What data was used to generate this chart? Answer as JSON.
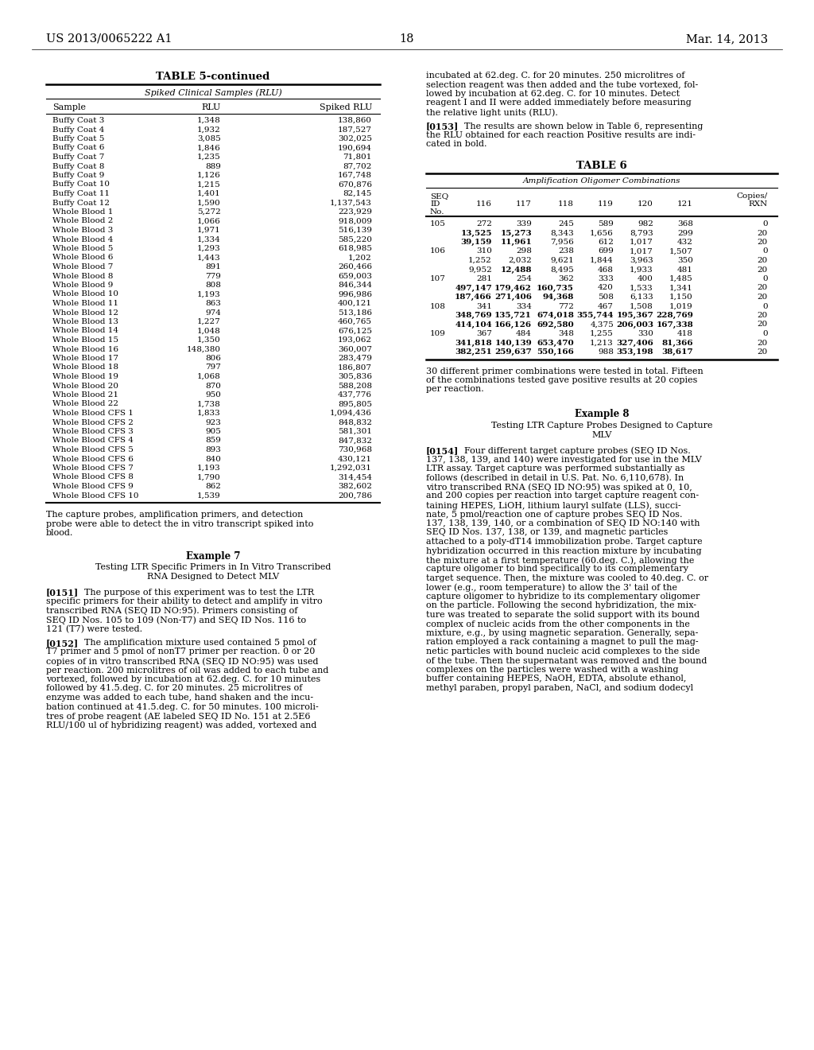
{
  "page_number": "18",
  "patent_number": "US 2013/0065222 A1",
  "patent_date": "Mar. 14, 2013",
  "bg_color": "#ffffff",
  "table5_title": "TABLE 5-continued",
  "table5_subtitle": "Spiked Clinical Samples (RLU)",
  "table5_data": [
    [
      "Buffy Coat 3",
      "1,348",
      "138,860"
    ],
    [
      "Buffy Coat 4",
      "1,932",
      "187,527"
    ],
    [
      "Buffy Coat 5",
      "3,085",
      "302,025"
    ],
    [
      "Buffy Coat 6",
      "1,846",
      "190,694"
    ],
    [
      "Buffy Coat 7",
      "1,235",
      "71,801"
    ],
    [
      "Buffy Coat 8",
      "889",
      "87,702"
    ],
    [
      "Buffy Coat 9",
      "1,126",
      "167,748"
    ],
    [
      "Buffy Coat 10",
      "1,215",
      "670,876"
    ],
    [
      "Buffy Coat 11",
      "1,401",
      "82,145"
    ],
    [
      "Buffy Coat 12",
      "1,590",
      "1,137,543"
    ],
    [
      "Whole Blood 1",
      "5,272",
      "223,929"
    ],
    [
      "Whole Blood 2",
      "1,066",
      "918,009"
    ],
    [
      "Whole Blood 3",
      "1,971",
      "516,139"
    ],
    [
      "Whole Blood 4",
      "1,334",
      "585,220"
    ],
    [
      "Whole Blood 5",
      "1,293",
      "618,985"
    ],
    [
      "Whole Blood 6",
      "1,443",
      "1,202"
    ],
    [
      "Whole Blood 7",
      "891",
      "260,466"
    ],
    [
      "Whole Blood 8",
      "779",
      "659,003"
    ],
    [
      "Whole Blood 9",
      "808",
      "846,344"
    ],
    [
      "Whole Blood 10",
      "1,193",
      "996,986"
    ],
    [
      "Whole Blood 11",
      "863",
      "400,121"
    ],
    [
      "Whole Blood 12",
      "974",
      "513,186"
    ],
    [
      "Whole Blood 13",
      "1,227",
      "460,765"
    ],
    [
      "Whole Blood 14",
      "1,048",
      "676,125"
    ],
    [
      "Whole Blood 15",
      "1,350",
      "193,062"
    ],
    [
      "Whole Blood 16",
      "148,380",
      "360,007"
    ],
    [
      "Whole Blood 17",
      "806",
      "283,479"
    ],
    [
      "Whole Blood 18",
      "797",
      "186,807"
    ],
    [
      "Whole Blood 19",
      "1,068",
      "305,836"
    ],
    [
      "Whole Blood 20",
      "870",
      "588,208"
    ],
    [
      "Whole Blood 21",
      "950",
      "437,776"
    ],
    [
      "Whole Blood 22",
      "1,738",
      "895,805"
    ],
    [
      "Whole Blood CFS 1",
      "1,833",
      "1,094,436"
    ],
    [
      "Whole Blood CFS 2",
      "923",
      "848,832"
    ],
    [
      "Whole Blood CFS 3",
      "905",
      "581,301"
    ],
    [
      "Whole Blood CFS 4",
      "859",
      "847,832"
    ],
    [
      "Whole Blood CFS 5",
      "893",
      "730,968"
    ],
    [
      "Whole Blood CFS 6",
      "840",
      "430,121"
    ],
    [
      "Whole Blood CFS 7",
      "1,193",
      "1,292,031"
    ],
    [
      "Whole Blood CFS 8",
      "1,790",
      "314,454"
    ],
    [
      "Whole Blood CFS 9",
      "862",
      "382,602"
    ],
    [
      "Whole Blood CFS 10",
      "1,539",
      "200,786"
    ]
  ],
  "table5_caption_lines": [
    "The capture probes, amplification primers, and detection",
    "probe were able to detect the in vitro transcript spiked into",
    "blood."
  ],
  "example7_header": "Example 7",
  "example7_title_lines": [
    "Testing LTR Specific Primers in In Vitro Transcribed",
    "RNA Designed to Detect MLV"
  ],
  "para_0151_lines": [
    "[0151]    The purpose of this experiment was to test the LTR",
    "specific primers for their ability to detect and amplify in vitro",
    "transcribed RNA (SEQ ID NO:95). Primers consisting of",
    "SEQ ID Nos. 105 to 109 (Non-T7) and SEQ ID Nos. 116 to",
    "121 (T7) were tested."
  ],
  "para_0152_lines": [
    "[0152]    The amplification mixture used contained 5 pmol of",
    "T7 primer and 5 pmol of nonT7 primer per reaction. 0 or 20",
    "copies of in vitro transcribed RNA (SEQ ID NO:95) was used",
    "per reaction. 200 microlitres of oil was added to each tube and",
    "vortexed, followed by incubation at 62.deg. C. for 10 minutes",
    "followed by 41.5.deg. C. for 20 minutes. 25 microlitres of",
    "enzyme was added to each tube, hand shaken and the incu-",
    "bation continued at 41.5.deg. C. for 50 minutes. 100 microli-",
    "tres of probe reagent (AE labeled SEQ ID No. 151 at 2.5E6",
    "RLU/100 ul of hybridizing reagent) was added, vortexed and"
  ],
  "right_pre_lines": [
    "incubated at 62.deg. C. for 20 minutes. 250 microlitres of",
    "selection reagent was then added and the tube vortexed, fol-",
    "lowed by incubation at 62.deg. C. for 10 minutes. Detect",
    "reagent I and II were added immediately before measuring",
    "the relative light units (RLU)."
  ],
  "para_0153_lines": [
    "[0153]    The results are shown below in Table 6, representing",
    "the RLU obtained for each reaction Positive results are indi-",
    "cated in bold."
  ],
  "table6_title": "TABLE 6",
  "table6_subtitle": "Amplification Oligomer Combinations",
  "table6_data": [
    [
      "105",
      "272",
      "339",
      "245",
      "589",
      "982",
      "368",
      "0",
      false,
      false,
      false,
      false,
      false,
      false
    ],
    [
      "",
      "13,525",
      "15,273",
      "8,343",
      "1,656",
      "8,793",
      "299",
      "20",
      true,
      true,
      false,
      false,
      false,
      false
    ],
    [
      "",
      "39,159",
      "11,961",
      "7,956",
      "612",
      "1,017",
      "432",
      "20",
      true,
      true,
      false,
      false,
      false,
      false
    ],
    [
      "106",
      "310",
      "298",
      "238",
      "699",
      "1,017",
      "1,507",
      "0",
      false,
      false,
      false,
      false,
      false,
      false
    ],
    [
      "",
      "1,252",
      "2,032",
      "9,621",
      "1,844",
      "3,963",
      "350",
      "20",
      false,
      false,
      false,
      false,
      false,
      false
    ],
    [
      "",
      "9,952",
      "12,488",
      "8,495",
      "468",
      "1,933",
      "481",
      "20",
      false,
      true,
      false,
      false,
      false,
      false
    ],
    [
      "107",
      "281",
      "254",
      "362",
      "333",
      "400",
      "1,485",
      "0",
      false,
      false,
      false,
      false,
      false,
      false
    ],
    [
      "",
      "497,147",
      "179,462",
      "160,735",
      "420",
      "1,533",
      "1,341",
      "20",
      true,
      true,
      true,
      false,
      false,
      false
    ],
    [
      "",
      "187,466",
      "271,406",
      "94,368",
      "508",
      "6,133",
      "1,150",
      "20",
      true,
      true,
      true,
      false,
      false,
      false
    ],
    [
      "108",
      "341",
      "334",
      "772",
      "467",
      "1,508",
      "1,019",
      "0",
      false,
      false,
      false,
      false,
      false,
      false
    ],
    [
      "",
      "348,769",
      "135,721",
      "674,018",
      "355,744",
      "195,367",
      "228,769",
      "20",
      true,
      true,
      true,
      true,
      true,
      true
    ],
    [
      "",
      "414,104",
      "166,126",
      "692,580",
      "4,375",
      "206,003",
      "167,338",
      "20",
      true,
      true,
      true,
      false,
      true,
      true
    ],
    [
      "109",
      "367",
      "484",
      "348",
      "1,255",
      "330",
      "418",
      "0",
      false,
      false,
      false,
      false,
      false,
      false
    ],
    [
      "",
      "341,818",
      "140,139",
      "653,470",
      "1,213",
      "327,406",
      "81,366",
      "20",
      true,
      true,
      true,
      false,
      true,
      true
    ],
    [
      "",
      "382,251",
      "259,637",
      "550,166",
      "988",
      "353,198",
      "38,617",
      "20",
      true,
      true,
      true,
      false,
      true,
      true
    ]
  ],
  "table6_caption_lines": [
    "30 different primer combinations were tested in total. Fifteen",
    "of the combinations tested gave positive results at 20 copies",
    "per reaction."
  ],
  "example8_header": "Example 8",
  "example8_title_lines": [
    "Testing LTR Capture Probes Designed to Capture",
    "MLV"
  ],
  "para_0154_lines": [
    "[0154]    Four different target capture probes (SEQ ID Nos.",
    "137, 138, 139, and 140) were investigated for use in the MLV",
    "LTR assay. Target capture was performed substantially as",
    "follows (described in detail in U.S. Pat. No. 6,110,678). In",
    "vitro transcribed RNA (SEQ ID NO:95) was spiked at 0, 10,",
    "and 200 copies per reaction into target capture reagent con-",
    "taining HEPES, LiOH, lithium lauryl sulfate (LLS), succi-",
    "nate, 5 pmol/reaction one of capture probes SEQ ID Nos.",
    "137, 138, 139, 140, or a combination of SEQ ID NO:140 with",
    "SEQ ID Nos. 137, 138, or 139, and magnetic particles",
    "attached to a poly-dT14 immobilization probe. Target capture",
    "hybridization occurred in this reaction mixture by incubating",
    "the mixture at a first temperature (60.deg. C.), allowing the",
    "capture oligomer to bind specifically to its complementary",
    "target sequence. Then, the mixture was cooled to 40.deg. C. or",
    "lower (e.g., room temperature) to allow the 3' tail of the",
    "capture oligomer to hybridize to its complementary oligomer",
    "on the particle. Following the second hybridization, the mix-",
    "ture was treated to separate the solid support with its bound",
    "complex of nucleic acids from the other components in the",
    "mixture, e.g., by using magnetic separation. Generally, sepa-",
    "ration employed a rack containing a magnet to pull the mag-",
    "netic particles with bound nucleic acid complexes to the side",
    "of the tube. Then the supernatant was removed and the bound",
    "complexes on the particles were washed with a washing",
    "buffer containing HEPES, NaOH, EDTA, absolute ethanol,",
    "methyl paraben, propyl paraben, NaCl, and sodium dodecyl"
  ]
}
